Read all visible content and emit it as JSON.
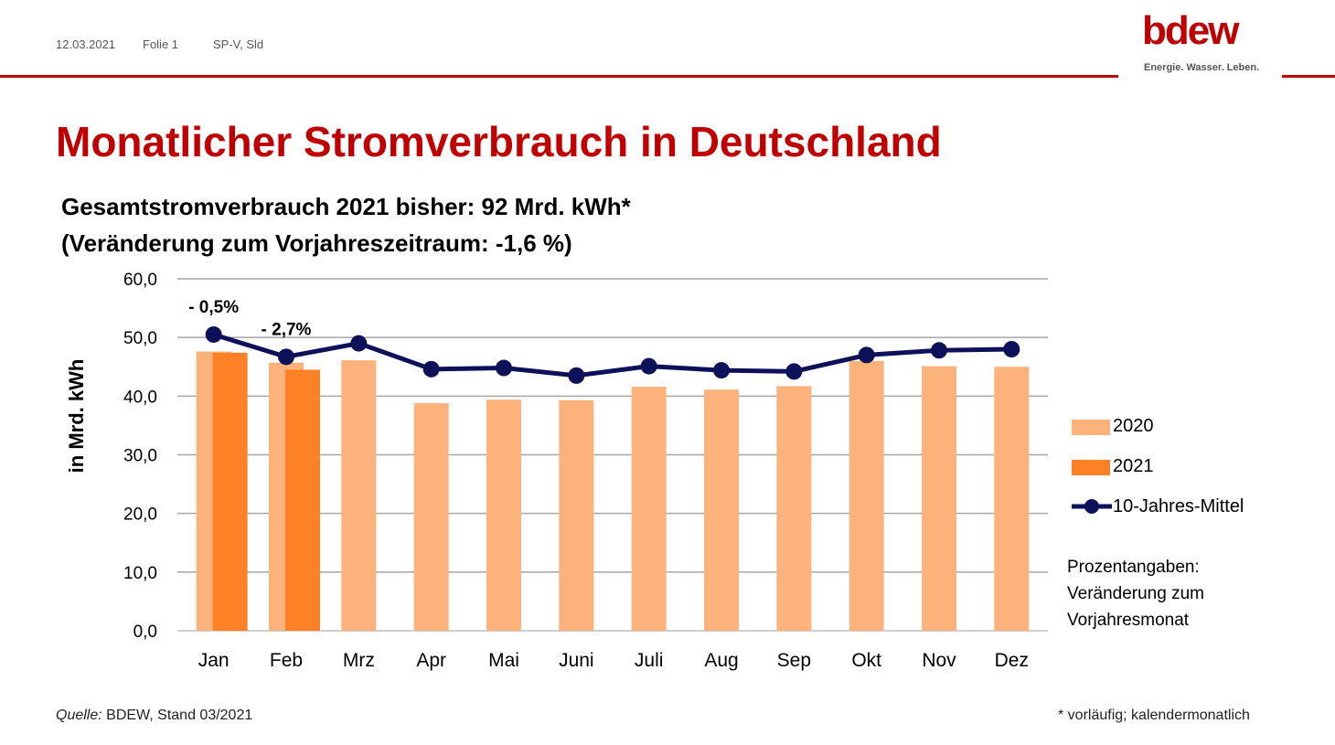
{
  "header": {
    "date": "12.03.2021",
    "slide": "Folie 1",
    "dept": "SP-V, Sld"
  },
  "logo": {
    "wordmark": "bdew",
    "tagline": "Energie. Wasser. Leben."
  },
  "title": "Monatlicher Stromverbrauch in Deutschland",
  "subtitle": {
    "line1": "Gesamtstromverbrauch 2021 bisher: 92 Mrd. kWh*",
    "line2": "(Veränderung zum Vorjahreszeitraum: -1,6 %)"
  },
  "chart_data": {
    "type": "bar",
    "ylabel": "in Mrd. kWh",
    "ylim": [
      0,
      60
    ],
    "yticks": [
      "0,0",
      "10,0",
      "20,0",
      "30,0",
      "40,0",
      "50,0",
      "60,0"
    ],
    "categories": [
      "Jan",
      "Feb",
      "Mrz",
      "Apr",
      "Mai",
      "Juni",
      "Juli",
      "Aug",
      "Sep",
      "Okt",
      "Nov",
      "Dez"
    ],
    "series": [
      {
        "name": "2020",
        "kind": "bar",
        "color": "#fdb27c",
        "values": [
          47.6,
          45.7,
          46.1,
          38.8,
          39.4,
          39.3,
          41.6,
          41.1,
          41.7,
          46.0,
          45.1,
          45.0
        ]
      },
      {
        "name": "2021",
        "kind": "bar",
        "color": "#ff8125",
        "values": [
          47.4,
          44.5,
          null,
          null,
          null,
          null,
          null,
          null,
          null,
          null,
          null,
          null
        ]
      },
      {
        "name": "10-Jahres-Mittel",
        "kind": "line",
        "color": "#0d1159",
        "values": [
          50.5,
          46.7,
          49.0,
          44.6,
          44.8,
          43.5,
          45.1,
          44.4,
          44.2,
          47.0,
          47.8,
          48.0
        ]
      }
    ],
    "annotations": [
      {
        "category": "Jan",
        "text": "- 0,5%"
      },
      {
        "category": "Feb",
        "text": "- 2,7%"
      }
    ],
    "grid": true,
    "legend_position": "right"
  },
  "note": {
    "line1": "Prozentangaben:",
    "line2": "Veränderung zum",
    "line3": "Vorjahresmonat"
  },
  "footer": {
    "source_label": "Quelle:",
    "source_text": " BDEW, Stand 03/2021",
    "footnote": "* vorläufig; kalendermonatlich"
  },
  "colors": {
    "brand": "#c00000",
    "bar_2020": "#fdb27c",
    "bar_2021": "#ff8125",
    "line_avg": "#0d1159"
  }
}
